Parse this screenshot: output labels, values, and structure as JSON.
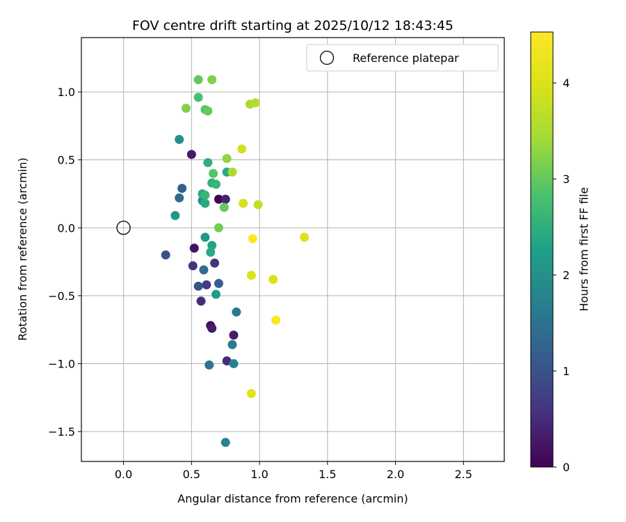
{
  "chart_data": {
    "type": "scatter",
    "title": "FOV centre drift starting at 2025/10/12 18:43:45",
    "xlabel": "Angular distance from reference (arcmin)",
    "ylabel": "Rotation from reference (arcmin)",
    "xlim": [
      -0.31,
      2.8
    ],
    "ylim": [
      -1.72,
      1.4
    ],
    "xticks": [
      0.0,
      0.5,
      1.0,
      1.5,
      2.0,
      2.5
    ],
    "xtick_labels": [
      "0.0",
      "0.5",
      "1.0",
      "1.5",
      "2.0",
      "2.5"
    ],
    "yticks": [
      -1.5,
      -1.0,
      -0.5,
      0.0,
      0.5,
      1.0
    ],
    "ytick_labels": [
      "−1.5",
      "−1.0",
      "−0.5",
      "0.0",
      "0.5",
      "1.0"
    ],
    "grid": true,
    "legend": {
      "placement": "top-right",
      "entries": [
        "Reference platepar"
      ]
    },
    "reference_point": {
      "x": 0.0,
      "y": 0.0,
      "label": "Reference platepar"
    },
    "colorbar": {
      "label": "Hours from first FF file",
      "range": [
        0,
        4.53
      ],
      "ticks": [
        0,
        1,
        2,
        3,
        4
      ],
      "tick_labels": [
        "0",
        "1",
        "2",
        "3",
        "4"
      ],
      "colormap": "viridis"
    },
    "points": [
      {
        "x": 0.7,
        "y": 0.21,
        "hours": 0.0
      },
      {
        "x": 0.75,
        "y": 0.21,
        "hours": 0.4
      },
      {
        "x": 0.5,
        "y": 0.54,
        "hours": 0.3
      },
      {
        "x": 0.52,
        "y": -0.15,
        "hours": 0.2
      },
      {
        "x": 0.51,
        "y": -0.28,
        "hours": 0.6
      },
      {
        "x": 0.57,
        "y": -0.54,
        "hours": 0.5
      },
      {
        "x": 0.64,
        "y": -0.72,
        "hours": 0.1
      },
      {
        "x": 0.65,
        "y": -0.74,
        "hours": 0.3
      },
      {
        "x": 0.81,
        "y": -0.79,
        "hours": 0.3
      },
      {
        "x": 0.76,
        "y": -0.98,
        "hours": 0.5
      },
      {
        "x": 0.67,
        "y": -0.26,
        "hours": 0.6
      },
      {
        "x": 0.61,
        "y": -0.42,
        "hours": 0.7
      },
      {
        "x": 0.31,
        "y": -0.2,
        "hours": 1.0
      },
      {
        "x": 0.55,
        "y": -0.43,
        "hours": 1.0
      },
      {
        "x": 0.7,
        "y": -0.41,
        "hours": 1.2
      },
      {
        "x": 0.59,
        "y": -0.31,
        "hours": 1.4
      },
      {
        "x": 0.43,
        "y": 0.29,
        "hours": 1.2
      },
      {
        "x": 0.41,
        "y": 0.22,
        "hours": 1.4
      },
      {
        "x": 0.63,
        "y": -1.01,
        "hours": 1.5
      },
      {
        "x": 0.8,
        "y": -0.86,
        "hours": 1.6
      },
      {
        "x": 0.81,
        "y": -1.0,
        "hours": 1.7
      },
      {
        "x": 0.83,
        "y": -0.62,
        "hours": 1.6
      },
      {
        "x": 0.75,
        "y": -1.58,
        "hours": 1.8
      },
      {
        "x": 0.38,
        "y": 0.09,
        "hours": 2.1
      },
      {
        "x": 0.41,
        "y": 0.65,
        "hours": 2.0
      },
      {
        "x": 0.58,
        "y": 0.2,
        "hours": 2.0
      },
      {
        "x": 0.6,
        "y": -0.07,
        "hours": 2.1
      },
      {
        "x": 0.65,
        "y": -0.13,
        "hours": 2.3
      },
      {
        "x": 0.64,
        "y": -0.18,
        "hours": 2.4
      },
      {
        "x": 0.68,
        "y": -0.49,
        "hours": 2.2
      },
      {
        "x": 0.6,
        "y": 0.18,
        "hours": 2.4
      },
      {
        "x": 0.58,
        "y": 0.25,
        "hours": 2.4
      },
      {
        "x": 0.6,
        "y": 0.24,
        "hours": 2.6
      },
      {
        "x": 0.62,
        "y": 0.48,
        "hours": 2.5
      },
      {
        "x": 0.65,
        "y": 0.33,
        "hours": 2.5
      },
      {
        "x": 0.68,
        "y": 0.32,
        "hours": 2.6
      },
      {
        "x": 0.76,
        "y": 0.41,
        "hours": 2.4
      },
      {
        "x": 0.66,
        "y": 0.4,
        "hours": 2.9
      },
      {
        "x": 0.74,
        "y": 0.15,
        "hours": 3.0
      },
      {
        "x": 0.7,
        "y": 0.0,
        "hours": 3.1
      },
      {
        "x": 0.55,
        "y": 0.96,
        "hours": 2.8
      },
      {
        "x": 0.6,
        "y": 0.87,
        "hours": 2.9
      },
      {
        "x": 0.62,
        "y": 0.86,
        "hours": 3.0
      },
      {
        "x": 0.55,
        "y": 1.09,
        "hours": 3.0
      },
      {
        "x": 0.65,
        "y": 1.09,
        "hours": 3.2
      },
      {
        "x": 0.46,
        "y": 0.88,
        "hours": 3.2
      },
      {
        "x": 0.76,
        "y": 0.51,
        "hours": 3.3
      },
      {
        "x": 0.8,
        "y": 0.41,
        "hours": 3.5
      },
      {
        "x": 0.93,
        "y": 0.91,
        "hours": 3.5
      },
      {
        "x": 0.97,
        "y": 0.92,
        "hours": 3.6
      },
      {
        "x": 0.87,
        "y": 0.58,
        "hours": 3.9
      },
      {
        "x": 0.88,
        "y": 0.18,
        "hours": 3.9
      },
      {
        "x": 0.99,
        "y": 0.17,
        "hours": 3.7
      },
      {
        "x": 0.94,
        "y": -0.35,
        "hours": 4.0
      },
      {
        "x": 1.1,
        "y": -0.38,
        "hours": 4.0
      },
      {
        "x": 1.33,
        "y": -0.07,
        "hours": 4.0
      },
      {
        "x": 0.94,
        "y": -1.22,
        "hours": 4.1
      },
      {
        "x": 0.95,
        "y": -0.08,
        "hours": 4.5
      },
      {
        "x": 1.12,
        "y": -0.68,
        "hours": 4.5
      }
    ]
  }
}
